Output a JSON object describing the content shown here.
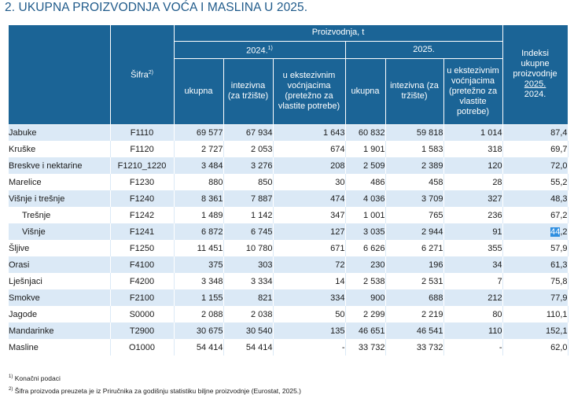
{
  "title": "2. UKUPNA PROIZVODNJA VOĆA I MASLINA U 2025.",
  "header": {
    "sifra": "Šifra",
    "sifra_sup": "2)",
    "proizvodnja": "Proizvodnja, t",
    "year1": "2024.",
    "year1_sup": "1)",
    "year2": "2025.",
    "ukupna": "ukupna",
    "intezivna": "intezivna (za tržište)",
    "ekstenzivnim": "u ekstezivnim voćnjacima (pretežno za vlastite potrebe)",
    "indeksi_top": "Indeksi ukupne proizvodnje",
    "indeksi_num": "2025.",
    "indeksi_den": "2024."
  },
  "rows": [
    {
      "name": "Jabuke",
      "code": "F1110",
      "v": [
        "69 577",
        "67 934",
        "1 643",
        "60 832",
        "59 818",
        "1 014"
      ],
      "idx": "87,4"
    },
    {
      "name": "Kruške",
      "code": "F1120",
      "v": [
        "2 727",
        "2 053",
        "674",
        "1 901",
        "1 583",
        "318"
      ],
      "idx": "69,7"
    },
    {
      "name": "Breskve i nektarine",
      "code": "F1210_1220",
      "v": [
        "3 484",
        "3 276",
        "208",
        "2 509",
        "2 389",
        "120"
      ],
      "idx": "72,0"
    },
    {
      "name": "Marelice",
      "code": "F1230",
      "v": [
        "880",
        "850",
        "30",
        "486",
        "458",
        "28"
      ],
      "idx": "55,2"
    },
    {
      "name": "Višnje i trešnje",
      "code": "F1240",
      "v": [
        "8 361",
        "7 887",
        "474",
        "4 036",
        "3 709",
        "327"
      ],
      "idx": "48,3"
    },
    {
      "name": "Trešnje",
      "code": "F1242",
      "v": [
        "1 489",
        "1 142",
        "347",
        "1 001",
        "765",
        "236"
      ],
      "idx": "67,2"
    },
    {
      "name": "Višnje",
      "code": "F1241",
      "v": [
        "6 872",
        "6 745",
        "127",
        "3 035",
        "2 944",
        "91"
      ],
      "idx": "44,2"
    },
    {
      "name": "Šljive",
      "code": "F1250",
      "v": [
        "11 451",
        "10 780",
        "671",
        "6 626",
        "6 271",
        "355"
      ],
      "idx": "57,9"
    },
    {
      "name": "Orasi",
      "code": "F4100",
      "v": [
        "375",
        "303",
        "72",
        "230",
        "196",
        "34"
      ],
      "idx": "61,3"
    },
    {
      "name": "Lješnjaci",
      "code": "F4200",
      "v": [
        "3 348",
        "3 334",
        "14",
        "2 538",
        "2 531",
        "7"
      ],
      "idx": "75,8"
    },
    {
      "name": "Smokve",
      "code": "F2100",
      "v": [
        "1 155",
        "821",
        "334",
        "900",
        "688",
        "212"
      ],
      "idx": "77,9"
    },
    {
      "name": "Jagode",
      "code": "S0000",
      "v": [
        "2 088",
        "2 038",
        "50",
        "2 299",
        "2 219",
        "80"
      ],
      "idx": "110,1"
    },
    {
      "name": "Mandarinke",
      "code": "T2900",
      "v": [
        "30 675",
        "30 540",
        "135",
        "46 651",
        "46 541",
        "110"
      ],
      "idx": "152,1"
    },
    {
      "name": "Masline",
      "code": "O1000",
      "v": [
        "54 414",
        "54 414",
        "-",
        "33 732",
        "33 732",
        "-"
      ],
      "idx": "62,0"
    }
  ],
  "selection": {
    "row": 6,
    "text": "44",
    "rest": ",2"
  },
  "footnotes": [
    {
      "sup": "1)",
      "text": "Konačni podaci"
    },
    {
      "sup": "2)",
      "text": "Šifra proizvoda preuzeta je iz Priručnika za godišnju statistiku biljne proizvodnje (Eurostat, 2025.)"
    }
  ]
}
